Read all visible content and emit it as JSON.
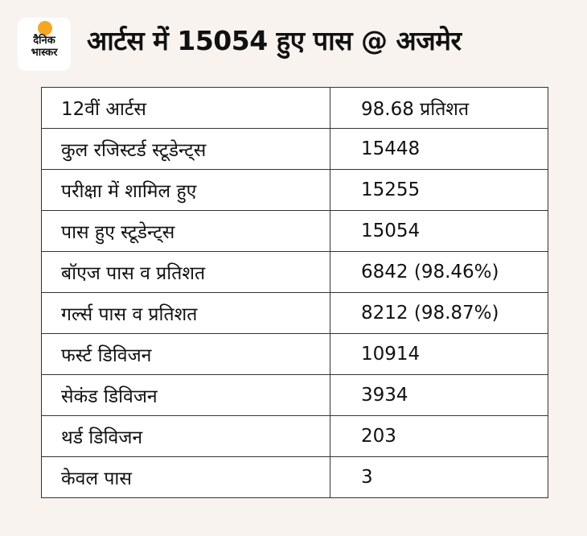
{
  "brand": {
    "logo_line1": "दैनिक",
    "logo_line2": "भास्कर",
    "accent_color": "#f5a623"
  },
  "title": "आर्टस में 15054 हुए पास @ अजमेर",
  "rows": [
    {
      "label": "12वीं आर्टस",
      "value": "98.68 प्रतिशत"
    },
    {
      "label": "कुल रजिस्टर्ड स्टूडेन्ट्स",
      "value": "15448"
    },
    {
      "label": "परीक्षा में शामिल हुए",
      "value": "15255"
    },
    {
      "label": "पास हुए स्टूडेन्ट्स",
      "value": "15054"
    },
    {
      "label": "बॉएज पास व प्रतिशत",
      "value": "6842 (98.46%)"
    },
    {
      "label": "गर्ल्स पास व प्रतिशत",
      "value": "8212 (98.87%)"
    },
    {
      "label": "फर्स्ट डिविजन",
      "value": "10914"
    },
    {
      "label": "सेकंड डिविजन",
      "value": "3934"
    },
    {
      "label": "थर्ड डिविजन",
      "value": "203"
    },
    {
      "label": "केवल पास",
      "value": "3"
    }
  ]
}
